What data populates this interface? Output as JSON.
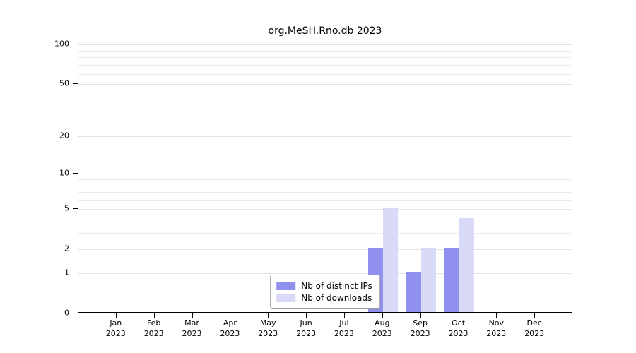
{
  "chart_data": {
    "type": "bar",
    "title": "org.MeSH.Rno.db 2023",
    "categories": [
      {
        "month": "Jan",
        "year": "2023"
      },
      {
        "month": "Feb",
        "year": "2023"
      },
      {
        "month": "Mar",
        "year": "2023"
      },
      {
        "month": "Apr",
        "year": "2023"
      },
      {
        "month": "May",
        "year": "2023"
      },
      {
        "month": "Jun",
        "year": "2023"
      },
      {
        "month": "Jul",
        "year": "2023"
      },
      {
        "month": "Aug",
        "year": "2023"
      },
      {
        "month": "Sep",
        "year": "2023"
      },
      {
        "month": "Oct",
        "year": "2023"
      },
      {
        "month": "Nov",
        "year": "2023"
      },
      {
        "month": "Dec",
        "year": "2023"
      }
    ],
    "series": [
      {
        "name": "Nb of distinct IPs",
        "color": "#9090ee",
        "values": [
          0,
          0,
          0,
          0,
          0,
          0,
          0,
          2,
          1,
          2,
          0,
          0
        ]
      },
      {
        "name": "Nb of downloads",
        "color": "#d9d9f8",
        "values": [
          0,
          0,
          0,
          0,
          0,
          0,
          0,
          5,
          2,
          4,
          0,
          0
        ]
      }
    ],
    "y_axis": {
      "ticks": [
        0,
        1,
        2,
        5,
        10,
        20,
        50,
        100
      ],
      "scale": "log1p",
      "min": 0,
      "max": 100
    },
    "grid": {
      "show": true,
      "minor_values": [
        1,
        2,
        3,
        4,
        5,
        6,
        7,
        8,
        9,
        10,
        20,
        30,
        40,
        50,
        60,
        70,
        80,
        90,
        100
      ]
    },
    "legend": {
      "position": "bottom-center-inside"
    }
  }
}
